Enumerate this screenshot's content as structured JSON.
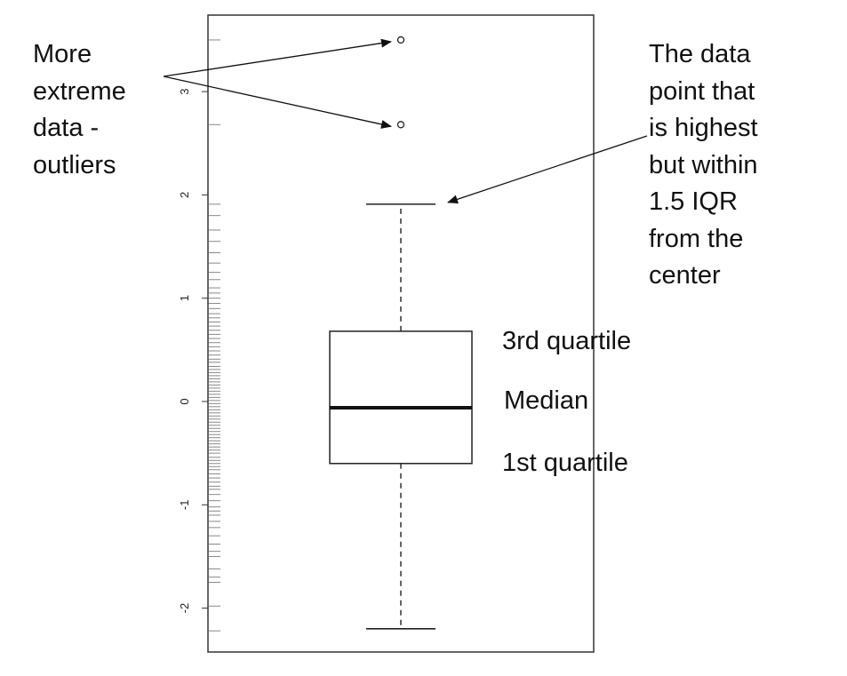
{
  "chart_data": {
    "type": "boxplot",
    "title": "",
    "xlabel": "",
    "ylabel": "",
    "ylim": [
      -2.3,
      3.75
    ],
    "yticks": [
      -2,
      -1,
      0,
      1,
      2,
      3
    ],
    "ytick_labels": [
      "-2",
      "-1",
      "0",
      "1",
      "2",
      "3"
    ],
    "box": {
      "min": -2.2,
      "q1": -0.6,
      "median": -0.06,
      "q3": 0.68,
      "max": 1.91
    },
    "outliers": [
      2.68,
      3.5
    ],
    "rug": [
      -2.22,
      -1.98,
      -1.75,
      -1.7,
      -1.62,
      -1.5,
      -1.45,
      -1.38,
      -1.3,
      -1.22,
      -1.16,
      -1.1,
      -1.06,
      -1.02,
      -0.96,
      -0.9,
      -0.85,
      -0.82,
      -0.78,
      -0.74,
      -0.7,
      -0.66,
      -0.63,
      -0.6,
      -0.57,
      -0.54,
      -0.5,
      -0.47,
      -0.44,
      -0.41,
      -0.38,
      -0.35,
      -0.32,
      -0.29,
      -0.26,
      -0.23,
      -0.2,
      -0.17,
      -0.14,
      -0.11,
      -0.08,
      -0.05,
      -0.02,
      0.01,
      0.04,
      0.07,
      0.1,
      0.13,
      0.16,
      0.19,
      0.22,
      0.25,
      0.28,
      0.31,
      0.34,
      0.38,
      0.41,
      0.45,
      0.49,
      0.53,
      0.57,
      0.61,
      0.65,
      0.69,
      0.73,
      0.77,
      0.81,
      0.85,
      0.9,
      0.95,
      1.0,
      1.05,
      1.1,
      1.18,
      1.25,
      1.34,
      1.44,
      1.55,
      1.66,
      1.8,
      1.91,
      2.68,
      3.5
    ],
    "annotations": {
      "outliers": [
        "More",
        "extreme",
        "data -",
        "outliers"
      ],
      "whisker": [
        "The data",
        "point that",
        "is highest",
        "but within",
        "1.5 IQR",
        "from the",
        "center"
      ],
      "q3": "3rd quartile",
      "median": "Median",
      "q1": "1st quartile"
    }
  }
}
